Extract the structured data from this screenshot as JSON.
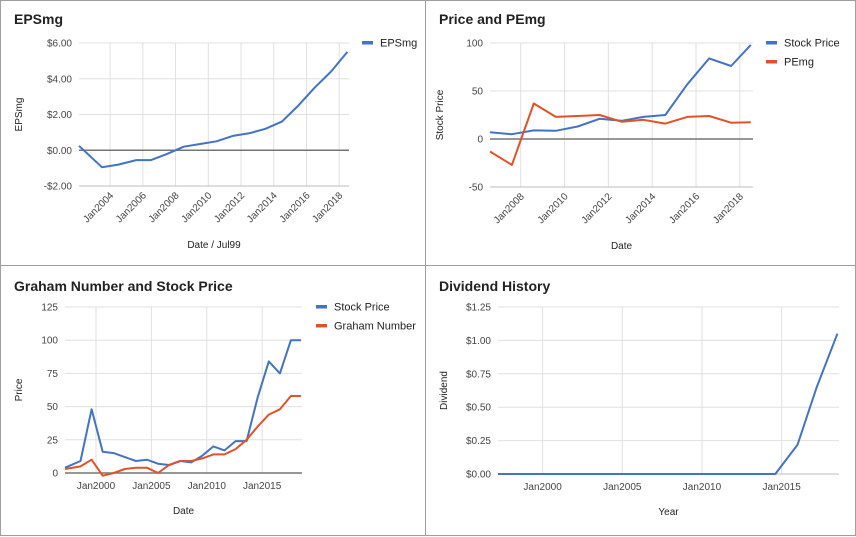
{
  "chart_data": [
    {
      "id": "eps",
      "type": "line",
      "title": "EPSmg",
      "xlabel": "Date / Jul99",
      "ylabel": "EPSmg",
      "xlim": [
        2002.1,
        2018.6
      ],
      "ylim": [
        -2,
        6
      ],
      "yticks": [
        -2,
        0,
        2,
        4,
        6
      ],
      "ytick_labels": [
        "-$2.00",
        "$0.00",
        "$2.00",
        "$4.00",
        "$6.00"
      ],
      "xticks": [
        2004,
        2006,
        2008,
        2010,
        2012,
        2014,
        2016,
        2018
      ],
      "xtick_labels": [
        "Jan2004",
        "Jan2006",
        "Jan2008",
        "Jan2010",
        "Jan2012",
        "Jan2014",
        "Jan2016",
        "Jan2018"
      ],
      "xtick_rotate": -45,
      "baseline": 0,
      "grid": true,
      "legend": "right",
      "series": [
        {
          "name": "EPSmg",
          "color": "#4472c4",
          "x": [
            2002.1,
            2003.5,
            2004.5,
            2005.6,
            2006.5,
            2007.5,
            2008.5,
            2009.5,
            2010.5,
            2011.5,
            2012.5,
            2013.5,
            2014.5,
            2015.5,
            2016.5,
            2017.5,
            2018.5
          ],
          "y": [
            0.25,
            -0.95,
            -0.8,
            -0.55,
            -0.55,
            -0.2,
            0.2,
            0.35,
            0.5,
            0.8,
            0.95,
            1.2,
            1.6,
            2.5,
            3.5,
            4.4,
            5.5
          ]
        }
      ]
    },
    {
      "id": "pe",
      "type": "line",
      "title": "Price and PEmg",
      "xlabel": "Date",
      "ylabel": "Stock Price",
      "xlim": [
        2006.6,
        2018.6
      ],
      "ylim": [
        -50,
        100
      ],
      "yticks": [
        -50,
        0,
        50,
        100
      ],
      "ytick_labels": [
        "-50",
        "0",
        "50",
        "100"
      ],
      "xticks": [
        2008,
        2010,
        2012,
        2014,
        2016,
        2018
      ],
      "xtick_labels": [
        "Jan2008",
        "Jan2010",
        "Jan2012",
        "Jan2014",
        "Jan2016",
        "Jan2018"
      ],
      "xtick_rotate": -45,
      "baseline": 0,
      "grid": true,
      "legend": "right",
      "series": [
        {
          "name": "Stock Price",
          "color": "#4472c4",
          "x": [
            2006.6,
            2007.6,
            2008.6,
            2009.6,
            2010.6,
            2011.6,
            2012.6,
            2013.6,
            2014.6,
            2015.6,
            2016.6,
            2017.6,
            2018.5
          ],
          "y": [
            7,
            5,
            9,
            8.5,
            13,
            21,
            19,
            23,
            25,
            57,
            84,
            76,
            98
          ]
        },
        {
          "name": "PEmg",
          "color": "#e0522a",
          "x": [
            2006.6,
            2007.6,
            2008.6,
            2009.6,
            2010.6,
            2011.6,
            2012.6,
            2013.6,
            2014.6,
            2015.6,
            2016.6,
            2017.6,
            2018.5
          ],
          "y": [
            -13,
            -27,
            37,
            23,
            24,
            25,
            18,
            20,
            16,
            23,
            24,
            17,
            17.5
          ]
        }
      ]
    },
    {
      "id": "graham",
      "type": "line",
      "title": "Graham Number and Stock Price",
      "xlabel": "Date",
      "ylabel": "Price",
      "xlim": [
        1997.2,
        2018.6
      ],
      "ylim": [
        0,
        125
      ],
      "yticks": [
        0,
        25,
        50,
        75,
        100,
        125
      ],
      "ytick_labels": [
        "0",
        "25",
        "50",
        "75",
        "100",
        "125"
      ],
      "xticks": [
        2000,
        2005,
        2010,
        2015
      ],
      "xtick_labels": [
        "Jan2000",
        "Jan2005",
        "Jan2010",
        "Jan2015"
      ],
      "xtick_rotate": 0,
      "baseline": 0,
      "grid": true,
      "legend": "right",
      "series": [
        {
          "name": "Stock Price",
          "color": "#4472c4",
          "x": [
            1997.2,
            1998.6,
            1999.6,
            2000.6,
            2001.6,
            2002.6,
            2003.6,
            2004.6,
            2005.6,
            2006.6,
            2007.6,
            2008.6,
            2009.6,
            2010.6,
            2011.6,
            2012.6,
            2013.6,
            2014.6,
            2015.6,
            2016.6,
            2017.6,
            2018.5
          ],
          "y": [
            4,
            9,
            48,
            16,
            15,
            12,
            9,
            10,
            7,
            6,
            9,
            8,
            13,
            20,
            17,
            24,
            24,
            57,
            84,
            75,
            100,
            100
          ]
        },
        {
          "name": "Graham Number",
          "color": "#e0522a",
          "x": [
            1997.2,
            1998.6,
            1999.6,
            2000.6,
            2001.6,
            2002.6,
            2003.6,
            2004.6,
            2005.6,
            2006.6,
            2007.6,
            2008.6,
            2009.6,
            2010.6,
            2011.6,
            2012.6,
            2013.6,
            2014.6,
            2015.6,
            2016.6,
            2017.6,
            2018.5
          ],
          "y": [
            3,
            5,
            10,
            -2,
            0,
            3,
            4,
            4,
            0,
            6,
            9,
            9,
            11,
            14,
            14,
            18,
            25,
            35,
            44,
            48,
            58,
            58
          ]
        }
      ]
    },
    {
      "id": "dividend",
      "type": "line",
      "title": "Dividend History",
      "xlabel": "Year",
      "ylabel": "Dividend",
      "xlim": [
        1997.2,
        2018.6
      ],
      "ylim": [
        0,
        1.25
      ],
      "yticks": [
        0,
        0.25,
        0.5,
        0.75,
        1,
        1.25
      ],
      "ytick_labels": [
        "$0.00",
        "$0.25",
        "$0.50",
        "$0.75",
        "$1.00",
        "$1.25"
      ],
      "xticks": [
        2000,
        2005,
        2010,
        2015
      ],
      "xtick_labels": [
        "Jan2000",
        "Jan2005",
        "Jan2010",
        "Jan2015"
      ],
      "xtick_rotate": 0,
      "baseline": null,
      "grid": true,
      "legend": "none",
      "series": [
        {
          "name": "Dividend",
          "color": "#4472c4",
          "x": [
            1997.2,
            2014.6,
            2016.0,
            2017.2,
            2018.5
          ],
          "y": [
            0,
            0,
            0.22,
            0.65,
            1.05
          ]
        }
      ]
    }
  ]
}
